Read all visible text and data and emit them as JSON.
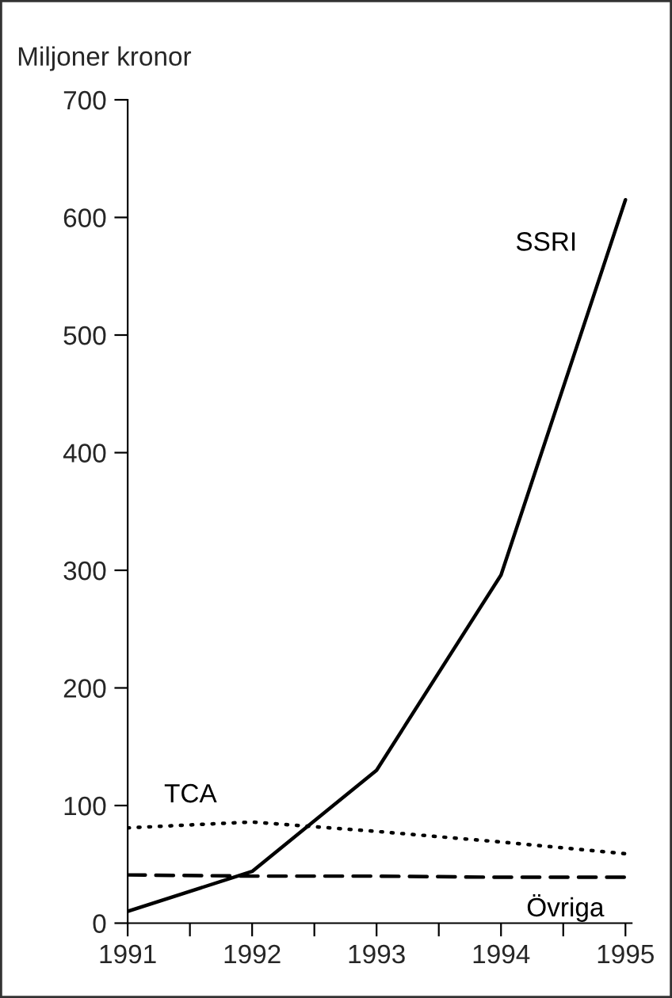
{
  "chart_data": {
    "type": "line",
    "ylabel": "Miljoner kronor",
    "x": [
      1991,
      1992,
      1993,
      1994,
      1995
    ],
    "series": [
      {
        "name": "SSRI",
        "color": "#000000",
        "line_style": "solid",
        "values": [
          10,
          44,
          130,
          296,
          615
        ]
      },
      {
        "name": "TCA",
        "color": "#000000",
        "line_style": "dotted",
        "values": [
          81,
          86,
          78,
          69,
          59
        ]
      },
      {
        "name": "Övriga",
        "color": "#000000",
        "line_style": "dashed",
        "values": [
          41,
          40,
          40,
          39,
          39
        ]
      }
    ],
    "xlim": [
      1991,
      1995.05
    ],
    "ylim": [
      0,
      700
    ],
    "xticks": [
      1991,
      {
        "value": 1991.5,
        "label": null
      },
      1992,
      {
        "value": 1992.5,
        "label": null
      },
      1993,
      {
        "value": 1993.5,
        "label": null
      },
      1994,
      {
        "value": 1994.5,
        "label": null
      },
      1995
    ],
    "yticks": [
      0,
      100,
      200,
      300,
      400,
      500,
      600,
      700
    ],
    "grid": false,
    "legend": false,
    "marker": "none"
  }
}
